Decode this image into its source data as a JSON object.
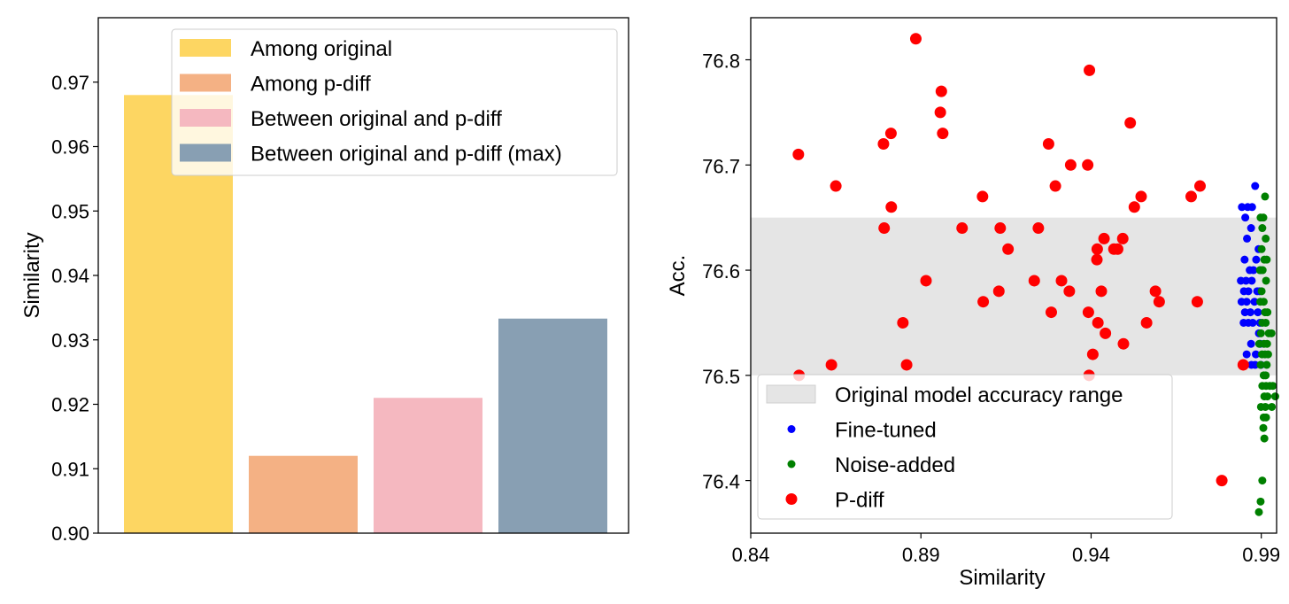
{
  "chart_data": [
    {
      "type": "bar",
      "categories": [
        "Among original",
        "Among p-diff",
        "Between original and p-diff",
        "Between original and p-diff (max)"
      ],
      "values": [
        0.968,
        0.912,
        0.921,
        0.9333
      ],
      "colors": [
        "#FDD662",
        "#F4B184",
        "#F5B8C0",
        "#889FB3"
      ],
      "xlabel": "",
      "ylabel": "Similarity",
      "ylim": [
        0.9,
        0.98
      ],
      "yticks": [
        "0.90",
        "0.91",
        "0.92",
        "0.93",
        "0.94",
        "0.95",
        "0.96",
        "0.97"
      ],
      "grid": false,
      "legend_position": "top-right",
      "legend": [
        "Among original",
        "Among p-diff",
        "Between original and p-diff",
        "Between original and p-diff (max)"
      ]
    },
    {
      "type": "scatter",
      "xlabel": "Similarity",
      "ylabel": "Acc.",
      "xlim": [
        0.84,
        0.9945
      ],
      "ylim": [
        76.35,
        76.84
      ],
      "xticks": [
        "0.84",
        "0.89",
        "0.94",
        "0.99"
      ],
      "yticks": [
        "76.4",
        "76.5",
        "76.6",
        "76.7",
        "76.8"
      ],
      "grid": false,
      "band": {
        "name": "Original model accuracy range",
        "y": [
          76.5,
          76.65
        ],
        "color": "#e5e5e5"
      },
      "legend_position": "lower-left",
      "legend": [
        "Original model accuracy range",
        "Fine-tuned",
        "Noise-added",
        "P-diff"
      ],
      "series": [
        {
          "name": "Fine-tuned",
          "color": "#0000ff",
          "points": [
            [
              0.9882,
              76.68
            ],
            [
              0.9843,
              76.66
            ],
            [
              0.986,
              76.66
            ],
            [
              0.9873,
              76.66
            ],
            [
              0.9853,
              76.65
            ],
            [
              0.987,
              76.64
            ],
            [
              0.9858,
              76.63
            ],
            [
              0.9892,
              76.62
            ],
            [
              0.9851,
              76.61
            ],
            [
              0.9885,
              76.61
            ],
            [
              0.9866,
              76.6
            ],
            [
              0.9877,
              76.6
            ],
            [
              0.9898,
              76.6
            ],
            [
              0.9855,
              76.59
            ],
            [
              0.984,
              76.59
            ],
            [
              0.9872,
              76.59
            ],
            [
              0.9888,
              76.58
            ],
            [
              0.9849,
              76.58
            ],
            [
              0.9862,
              76.58
            ],
            [
              0.9895,
              76.58
            ],
            [
              0.9857,
              76.57
            ],
            [
              0.9842,
              76.57
            ],
            [
              0.988,
              76.57
            ],
            [
              0.9868,
              76.56
            ],
            [
              0.9852,
              76.56
            ],
            [
              0.989,
              76.56
            ],
            [
              0.9862,
              76.55
            ],
            [
              0.9875,
              76.55
            ],
            [
              0.9848,
              76.55
            ],
            [
              0.9893,
              76.54
            ],
            [
              0.9897,
              76.53
            ],
            [
              0.9857,
              76.52
            ],
            [
              0.9884,
              76.52
            ],
            [
              0.9871,
              76.51
            ],
            [
              0.9899,
              76.51
            ],
            [
              0.9882,
              76.51
            ],
            [
              0.9896,
              76.55
            ],
            [
              0.987,
              76.53
            ]
          ]
        },
        {
          "name": "Noise-added",
          "color": "#008000",
          "points": [
            [
              0.9911,
              76.67
            ],
            [
              0.9898,
              76.65
            ],
            [
              0.9906,
              76.65
            ],
            [
              0.9903,
              76.64
            ],
            [
              0.9913,
              76.63
            ],
            [
              0.9901,
              76.62
            ],
            [
              0.9909,
              76.61
            ],
            [
              0.9916,
              76.61
            ],
            [
              0.9896,
              76.6
            ],
            [
              0.9904,
              76.6
            ],
            [
              0.9914,
              76.59
            ],
            [
              0.9901,
              76.58
            ],
            [
              0.9907,
              76.57
            ],
            [
              0.9897,
              76.57
            ],
            [
              0.9911,
              76.56
            ],
            [
              0.9918,
              76.56
            ],
            [
              0.9903,
              76.55
            ],
            [
              0.9913,
              76.55
            ],
            [
              0.9899,
              76.54
            ],
            [
              0.9922,
              76.54
            ],
            [
              0.993,
              76.54
            ],
            [
              0.9908,
              76.53
            ],
            [
              0.9917,
              76.53
            ],
            [
              0.9894,
              76.53
            ],
            [
              0.9902,
              76.52
            ],
            [
              0.9911,
              76.52
            ],
            [
              0.992,
              76.52
            ],
            [
              0.9898,
              76.51
            ],
            [
              0.9916,
              76.51
            ],
            [
              0.9907,
              76.5
            ],
            [
              0.9913,
              76.5
            ],
            [
              0.9903,
              76.49
            ],
            [
              0.9914,
              76.49
            ],
            [
              0.9925,
              76.49
            ],
            [
              0.9934,
              76.49
            ],
            [
              0.9909,
              76.48
            ],
            [
              0.9918,
              76.48
            ],
            [
              0.9941,
              76.48
            ],
            [
              0.9899,
              76.47
            ],
            [
              0.9912,
              76.47
            ],
            [
              0.9931,
              76.47
            ],
            [
              0.9907,
              76.46
            ],
            [
              0.9914,
              76.46
            ],
            [
              0.9906,
              76.45
            ],
            [
              0.9909,
              76.44
            ],
            [
              0.9903,
              76.4
            ],
            [
              0.9898,
              76.38
            ],
            [
              0.9893,
              76.37
            ]
          ]
        },
        {
          "name": "P-diff",
          "color": "#ff0000",
          "points": [
            [
              0.8885,
              76.82
            ],
            [
              0.9395,
              76.79
            ],
            [
              0.896,
              76.77
            ],
            [
              0.8957,
              76.75
            ],
            [
              0.9515,
              76.74
            ],
            [
              0.8812,
              76.73
            ],
            [
              0.8964,
              76.73
            ],
            [
              0.879,
              76.72
            ],
            [
              0.9275,
              76.72
            ],
            [
              0.854,
              76.71
            ],
            [
              0.934,
              76.7
            ],
            [
              0.939,
              76.7
            ],
            [
              0.865,
              76.68
            ],
            [
              0.9295,
              76.68
            ],
            [
              0.972,
              76.68
            ],
            [
              0.9081,
              76.67
            ],
            [
              0.9547,
              76.67
            ],
            [
              0.9694,
              76.67
            ],
            [
              0.8813,
              76.66
            ],
            [
              0.9527,
              76.66
            ],
            [
              0.8792,
              76.64
            ],
            [
              0.9021,
              76.64
            ],
            [
              0.9133,
              76.64
            ],
            [
              0.9245,
              76.64
            ],
            [
              0.9438,
              76.63
            ],
            [
              0.9493,
              76.63
            ],
            [
              0.9418,
              76.62
            ],
            [
              0.9467,
              76.62
            ],
            [
              0.9478,
              76.62
            ],
            [
              0.9156,
              76.62
            ],
            [
              0.9417,
              76.61
            ],
            [
              0.8915,
              76.59
            ],
            [
              0.9233,
              76.59
            ],
            [
              0.9313,
              76.59
            ],
            [
              0.9129,
              76.58
            ],
            [
              0.9336,
              76.58
            ],
            [
              0.943,
              76.58
            ],
            [
              0.9589,
              76.58
            ],
            [
              0.9083,
              76.57
            ],
            [
              0.96,
              76.57
            ],
            [
              0.9712,
              76.57
            ],
            [
              0.9283,
              76.56
            ],
            [
              0.9392,
              76.56
            ],
            [
              0.8847,
              76.55
            ],
            [
              0.942,
              76.55
            ],
            [
              0.9563,
              76.55
            ],
            [
              0.9442,
              76.54
            ],
            [
              0.9495,
              76.53
            ],
            [
              0.9405,
              76.52
            ],
            [
              0.8858,
              76.51
            ],
            [
              0.8637,
              76.51
            ],
            [
              0.8542,
              76.5
            ],
            [
              0.9394,
              76.5
            ],
            [
              0.9847,
              76.51
            ],
            [
              0.9784,
              76.4
            ]
          ]
        }
      ]
    }
  ]
}
